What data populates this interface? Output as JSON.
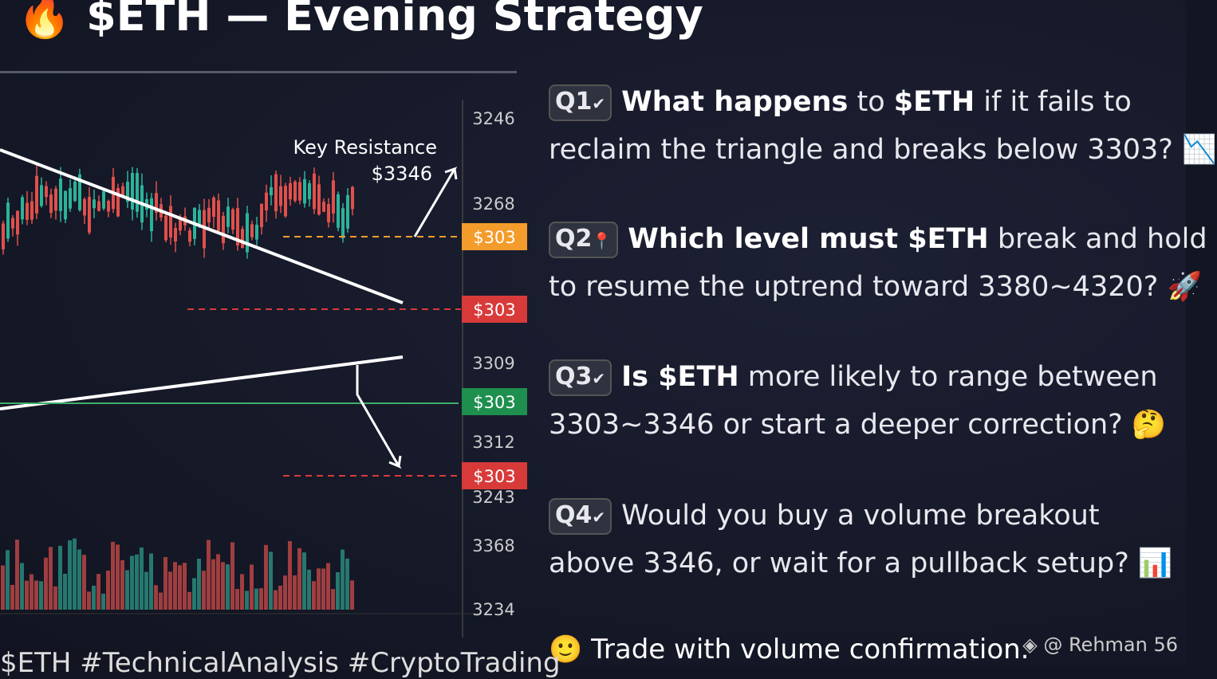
{
  "header": {
    "icon": "🔥",
    "title": "$ETH — Evening Strategy"
  },
  "chart": {
    "annotation": {
      "label": "Key Resistance",
      "price": "$3346"
    },
    "axis_labels": [
      "3246",
      "3268",
      "3309",
      "3312",
      "3243",
      "3368",
      "3234"
    ],
    "price_tags": [
      {
        "text": "$303",
        "color": "#f39c2b"
      },
      {
        "text": "$303",
        "color": "#d83a3a"
      },
      {
        "text": "$303",
        "color": "#1e8f4e"
      },
      {
        "text": "$303",
        "color": "#d83a3a"
      }
    ]
  },
  "questions": [
    {
      "badge": "Q1",
      "badge_icon": "✔",
      "lines": [
        [
          {
            "text": "What happens",
            "bold": true
          },
          {
            "text": " to ",
            "bold": false
          },
          {
            "text": "$ETH",
            "bold": true
          },
          {
            "text": " if it fails to",
            "bold": false
          }
        ],
        [
          {
            "text": "reclaim the triangle and breaks below 3303? 📉",
            "bold": false
          }
        ]
      ]
    },
    {
      "badge": "Q2",
      "badge_icon": "📍",
      "lines": [
        [
          {
            "text": "Which level must $ETH",
            "bold": true
          },
          {
            "text": " break and hold",
            "bold": false
          }
        ],
        [
          {
            "text": "to resume the uptrend toward 3380~4320? 🚀",
            "bold": false
          }
        ]
      ]
    },
    {
      "badge": "Q3",
      "badge_icon": "✔",
      "lines": [
        [
          {
            "text": "Is $ETH",
            "bold": true
          },
          {
            "text": " more likely to range between",
            "bold": false
          }
        ],
        [
          {
            "text": "3303~3346 or start a deeper correction? 🤔",
            "bold": false
          }
        ]
      ]
    },
    {
      "badge": "Q4",
      "badge_icon": "✔",
      "lines": [
        [
          {
            "text": "Would you buy a volume",
            "bold": false
          },
          {
            "text": " breakout",
            "bold": false
          }
        ],
        [
          {
            "text": "above 3346, or wait for a pullback setup? 📊",
            "bold": false
          }
        ]
      ]
    }
  ],
  "footer": {
    "note": "🙂 Trade with volume confirmation.",
    "hashtags": "$ETH #TechnicalAnalysis #CryptoTrading",
    "author": "◈ @ Rehman 56"
  }
}
